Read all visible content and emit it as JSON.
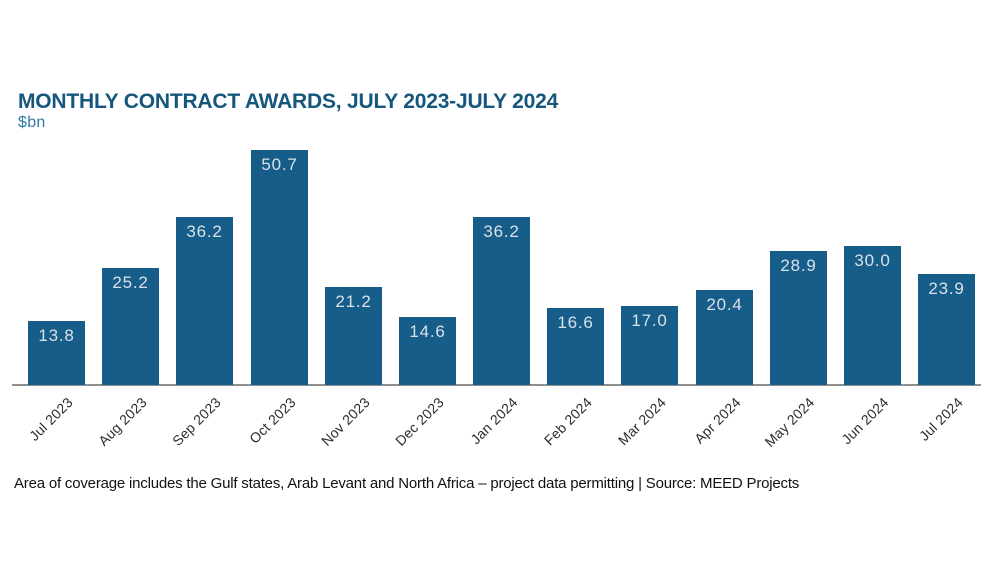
{
  "header": {
    "title": "MONTHLY CONTRACT AWARDS, JULY 2023-JULY 2024",
    "unit_label": "$bn"
  },
  "footer": {
    "note": "Area of coverage includes the Gulf states, Arab Levant and North Africa – project data permitting | Source: MEED Projects"
  },
  "chart_data": {
    "type": "bar",
    "title": "MONTHLY CONTRACT AWARDS, JULY 2023-JULY 2024",
    "ylabel": "$bn",
    "categories": [
      "Jul 2023",
      "Aug 2023",
      "Sep 2023",
      "Oct 2023",
      "Nov 2023",
      "Dec 2023",
      "Jan 2024",
      "Feb 2024",
      "Mar 2024",
      "Apr 2024",
      "May 2024",
      "Jun 2024",
      "Jul 2024"
    ],
    "values": [
      13.8,
      25.2,
      36.2,
      50.7,
      21.2,
      14.6,
      36.2,
      16.6,
      17.0,
      20.4,
      28.9,
      30.0,
      23.9
    ],
    "value_label_format": "one-decimal",
    "value_label_position": "inside-top",
    "x_tick_rotation": -45,
    "ylim": [
      0,
      52
    ],
    "grid": false,
    "legend": false,
    "y_axis_visible": false
  },
  "colors": {
    "title": "#15567D",
    "subtitle": "#2E7BA8",
    "tick": "#2D2D2D",
    "footer": "#111111",
    "bar": "#175D89",
    "bar_value": "#D9E1E8",
    "axis": "#8F8F8F",
    "bg": "#FFFFFF"
  }
}
